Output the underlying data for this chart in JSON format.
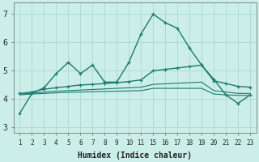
{
  "xlabel": "Humidex (Indice chaleur)",
  "bg_color": "#cceee8",
  "grid_color": "#aad8d0",
  "line_color": "#1a7a6e",
  "x_categories": [
    "1",
    "2",
    "3",
    "4",
    "5",
    "6",
    "7",
    "8",
    "9",
    "10",
    "11",
    "15",
    "16",
    "17",
    "18",
    "19",
    "20",
    "21",
    "22",
    "23"
  ],
  "ylim": [
    2.8,
    7.4
  ],
  "yticks": [
    3,
    4,
    5,
    6,
    7
  ],
  "series": [
    {
      "y": [
        3.5,
        4.2,
        4.4,
        4.9,
        5.3,
        4.9,
        5.2,
        4.6,
        4.6,
        5.3,
        6.3,
        7.0,
        6.7,
        6.5,
        5.8,
        5.2,
        4.7,
        4.15,
        3.85,
        4.15
      ],
      "marker": true,
      "lw": 1.0
    },
    {
      "y": [
        4.2,
        4.25,
        4.35,
        4.4,
        4.45,
        4.5,
        4.52,
        4.55,
        4.58,
        4.62,
        4.68,
        5.0,
        5.05,
        5.1,
        5.15,
        5.2,
        4.65,
        4.55,
        4.45,
        4.42
      ],
      "marker": true,
      "lw": 1.0
    },
    {
      "y": [
        4.18,
        4.2,
        4.25,
        4.28,
        4.3,
        4.32,
        4.34,
        4.36,
        4.38,
        4.4,
        4.42,
        4.52,
        4.54,
        4.56,
        4.58,
        4.6,
        4.3,
        4.25,
        4.2,
        4.2
      ],
      "marker": false,
      "lw": 0.8
    },
    {
      "y": [
        4.15,
        4.18,
        4.2,
        4.22,
        4.24,
        4.25,
        4.26,
        4.27,
        4.28,
        4.29,
        4.3,
        4.38,
        4.38,
        4.38,
        4.38,
        4.38,
        4.18,
        4.15,
        4.13,
        4.13
      ],
      "marker": false,
      "lw": 0.8
    }
  ]
}
